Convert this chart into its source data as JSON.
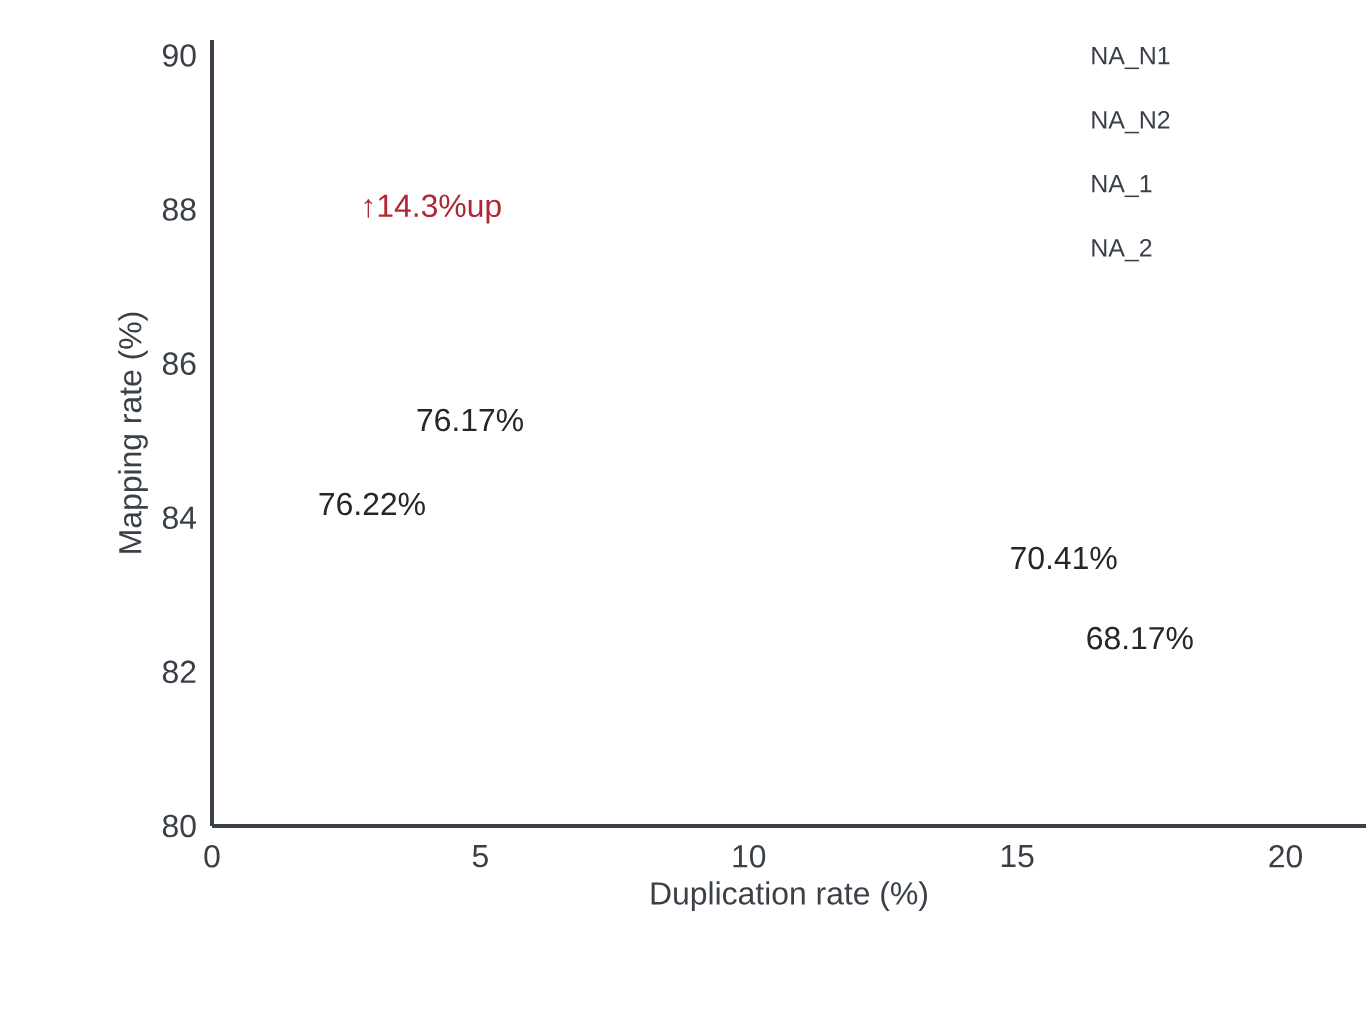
{
  "chart_data": {
    "type": "scatter",
    "xlabel": "Duplication rate (%)",
    "ylabel": "Mapping rate (%)",
    "xlim": [
      0,
      21.5
    ],
    "ylim": [
      80,
      90.2
    ],
    "xticks": [
      0,
      5,
      10,
      15,
      20
    ],
    "yticks": [
      80,
      82,
      84,
      86,
      88,
      90
    ],
    "annotations": [
      "NA_N1",
      "NA_N2",
      "NA_1",
      "NA_2",
      "↑14.3%up",
      "76.17%",
      "76.22%",
      "70.41%",
      "68.17%"
    ]
  }
}
